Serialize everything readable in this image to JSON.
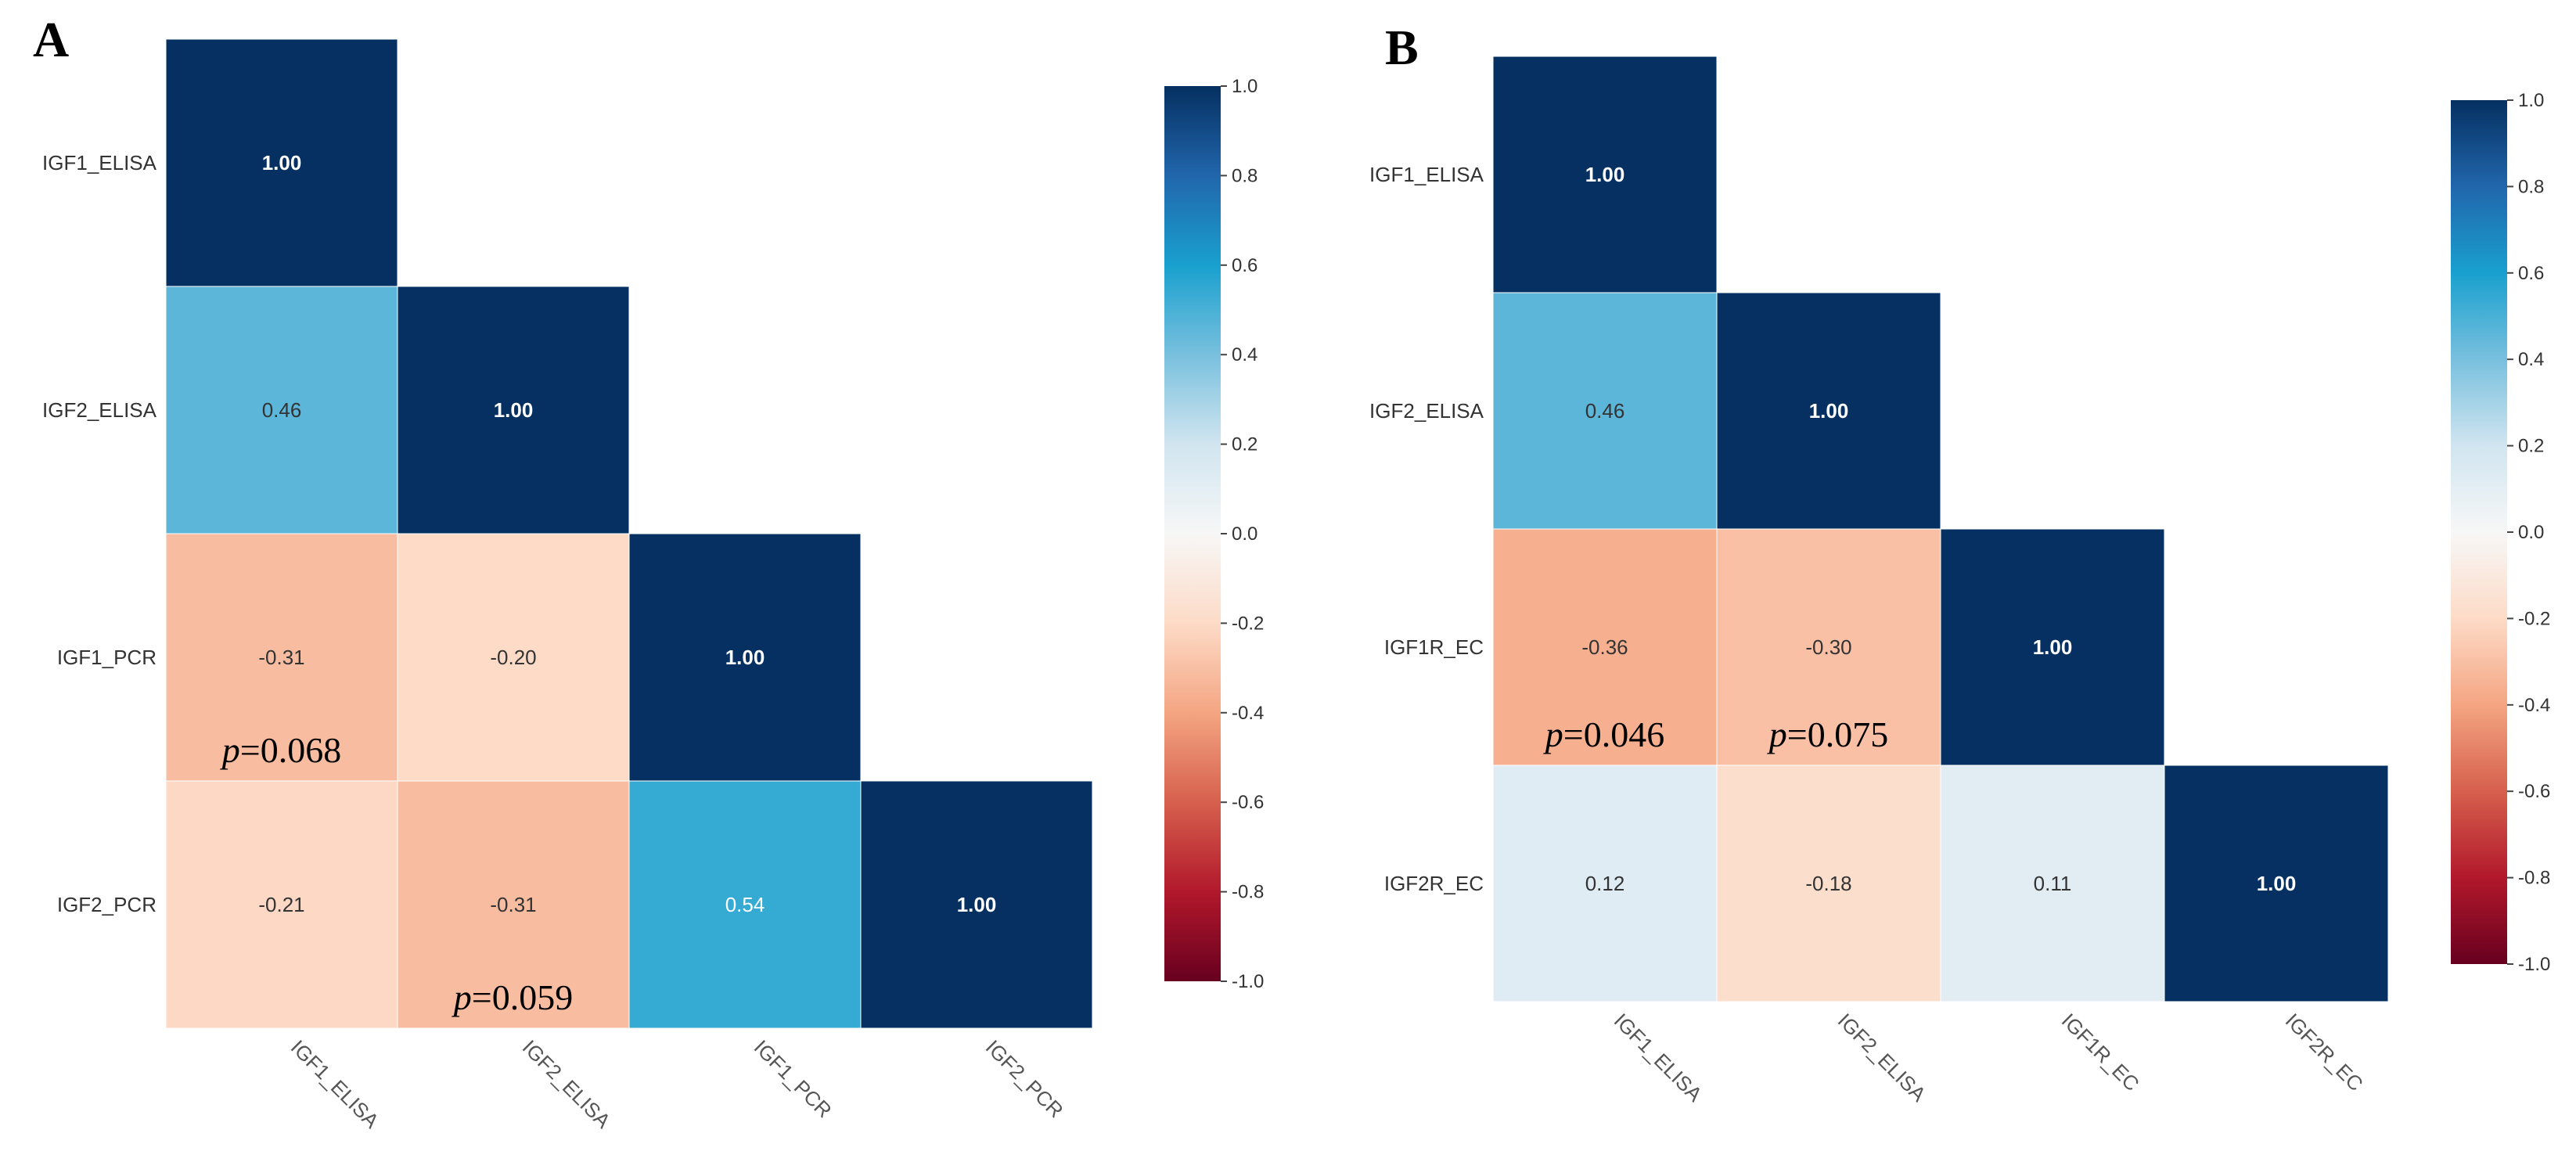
{
  "chart_data": [
    {
      "panel": "A",
      "type": "heatmap",
      "variables": [
        "IGF1_ELISA",
        "IGF2_ELISA",
        "IGF1_PCR",
        "IGF2_PCR"
      ],
      "matrix": [
        [
          1.0,
          null,
          null,
          null
        ],
        [
          0.46,
          1.0,
          null,
          null
        ],
        [
          -0.31,
          -0.2,
          1.0,
          null
        ],
        [
          -0.21,
          -0.31,
          0.54,
          1.0
        ]
      ],
      "value_labels": [
        [
          "1.00",
          "",
          "",
          ""
        ],
        [
          "0.46",
          "1.00",
          "",
          ""
        ],
        [
          "-0.31",
          "-0.20",
          "1.00",
          ""
        ],
        [
          "-0.21",
          "-0.31",
          "0.54",
          "1.00"
        ]
      ],
      "annotations": [
        {
          "row": 2,
          "col": 0,
          "prefix": "p",
          "text": "=0.068"
        },
        {
          "row": 3,
          "col": 1,
          "prefix": "p",
          "text": "=0.059"
        }
      ],
      "colorbar": {
        "range": [
          -1.0,
          1.0
        ],
        "ticks": [
          "1.0",
          "0.8",
          "0.6",
          "0.4",
          "0.2",
          "0.0",
          "-0.2",
          "-0.4",
          "-0.6",
          "-0.8",
          "-1.0"
        ]
      }
    },
    {
      "panel": "B",
      "type": "heatmap",
      "variables": [
        "IGF1_ELISA",
        "IGF2_ELISA",
        "IGF1R_EC",
        "IGF2R_EC"
      ],
      "matrix": [
        [
          1.0,
          null,
          null,
          null
        ],
        [
          0.46,
          1.0,
          null,
          null
        ],
        [
          -0.36,
          -0.3,
          1.0,
          null
        ],
        [
          0.12,
          -0.18,
          0.11,
          1.0
        ]
      ],
      "value_labels": [
        [
          "1.00",
          "",
          "",
          ""
        ],
        [
          "0.46",
          "1.00",
          "",
          ""
        ],
        [
          "-0.36",
          "-0.30",
          "1.00",
          ""
        ],
        [
          "0.12",
          "-0.18",
          "0.11",
          "1.00"
        ]
      ],
      "annotations": [
        {
          "row": 2,
          "col": 0,
          "prefix": "p",
          "text": "=0.046"
        },
        {
          "row": 2,
          "col": 1,
          "prefix": "p",
          "text": "=0.075"
        }
      ],
      "colorbar": {
        "range": [
          -1.0,
          1.0
        ],
        "ticks": [
          "1.0",
          "0.8",
          "0.6",
          "0.4",
          "0.2",
          "0.0",
          "-0.2",
          "-0.4",
          "-0.6",
          "-0.8",
          "-1.0"
        ]
      }
    }
  ]
}
